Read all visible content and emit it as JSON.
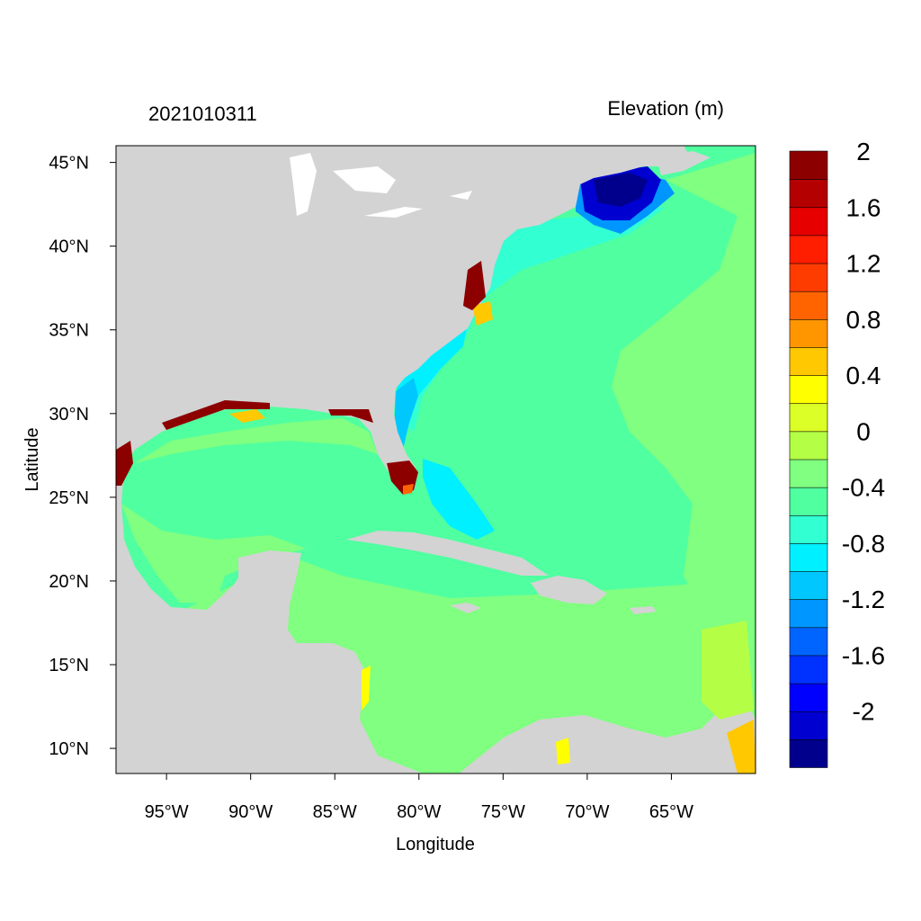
{
  "title_left": "2021010311",
  "title_right": "Elevation (m)",
  "x_axis": {
    "label": "Longitude",
    "range": [
      -98,
      -60
    ],
    "ticks": [
      {
        "value": -95,
        "label": "95°W"
      },
      {
        "value": -90,
        "label": "90°W"
      },
      {
        "value": -85,
        "label": "85°W"
      },
      {
        "value": -80,
        "label": "80°W"
      },
      {
        "value": -75,
        "label": "75°W"
      },
      {
        "value": -70,
        "label": "70°W"
      },
      {
        "value": -65,
        "label": "65°W"
      }
    ]
  },
  "y_axis": {
    "label": "Latitude",
    "range": [
      8.5,
      46
    ],
    "ticks": [
      {
        "value": 45,
        "label": "45°N"
      },
      {
        "value": 40,
        "label": "40°N"
      },
      {
        "value": 35,
        "label": "35°N"
      },
      {
        "value": 30,
        "label": "30°N"
      },
      {
        "value": 25,
        "label": "25°N"
      },
      {
        "value": 20,
        "label": "20°N"
      },
      {
        "value": 15,
        "label": "15°N"
      },
      {
        "value": 10,
        "label": "10°N"
      }
    ]
  },
  "colorbar": {
    "colors": [
      "#00008c",
      "#0000d0",
      "#0000ff",
      "#0032ff",
      "#0064ff",
      "#0096ff",
      "#00c8ff",
      "#00f0ff",
      "#32ffd2",
      "#50ffa0",
      "#80ff80",
      "#b4ff46",
      "#dcff28",
      "#ffff00",
      "#ffc800",
      "#ff9600",
      "#ff6400",
      "#ff3c00",
      "#ff1e00",
      "#e60000",
      "#b40000",
      "#8c0000"
    ],
    "labels": [
      "-2",
      "-1.6",
      "-1.2",
      "-0.8",
      "-0.4",
      "0",
      "0.4",
      "0.8",
      "1.2",
      "1.6",
      "2"
    ]
  },
  "colors": {
    "land": "#d3d3d3",
    "open_ocean": "#50ffa0",
    "caribbean": "#80ff80",
    "gulf_of_maine": "#0000d0",
    "florida_surge": "#8c0000",
    "continental_shelf": "#00f0ff"
  }
}
